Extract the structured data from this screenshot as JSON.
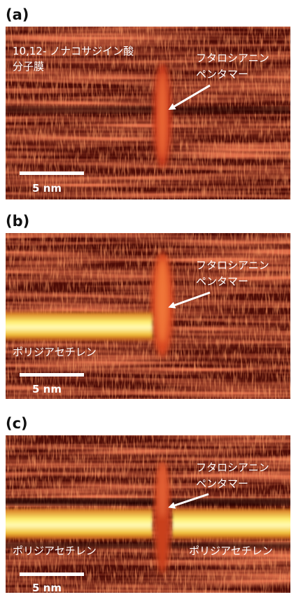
{
  "panels": [
    {
      "label": "(a)",
      "film_label": [
        "10,12- ノナコサジイン酸",
        "分子膜"
      ],
      "molecule_label": [
        "フタロシアニン",
        "ペンタマー"
      ],
      "scale_bar": "5 nm"
    },
    {
      "label": "(b)",
      "molecule_label": [
        "フタロシアニン",
        "ペンタマー"
      ],
      "polymer_labels": [
        "ポリジアセチレン"
      ],
      "scale_bar": "5 nm"
    },
    {
      "label": "(c)",
      "molecule_label": [
        "フタロシアニン",
        "ペンタマー"
      ],
      "polymer_labels": [
        "ポリジアセチレン",
        "ポリジアセチレン"
      ],
      "scale_bar": "5 nm"
    }
  ]
}
